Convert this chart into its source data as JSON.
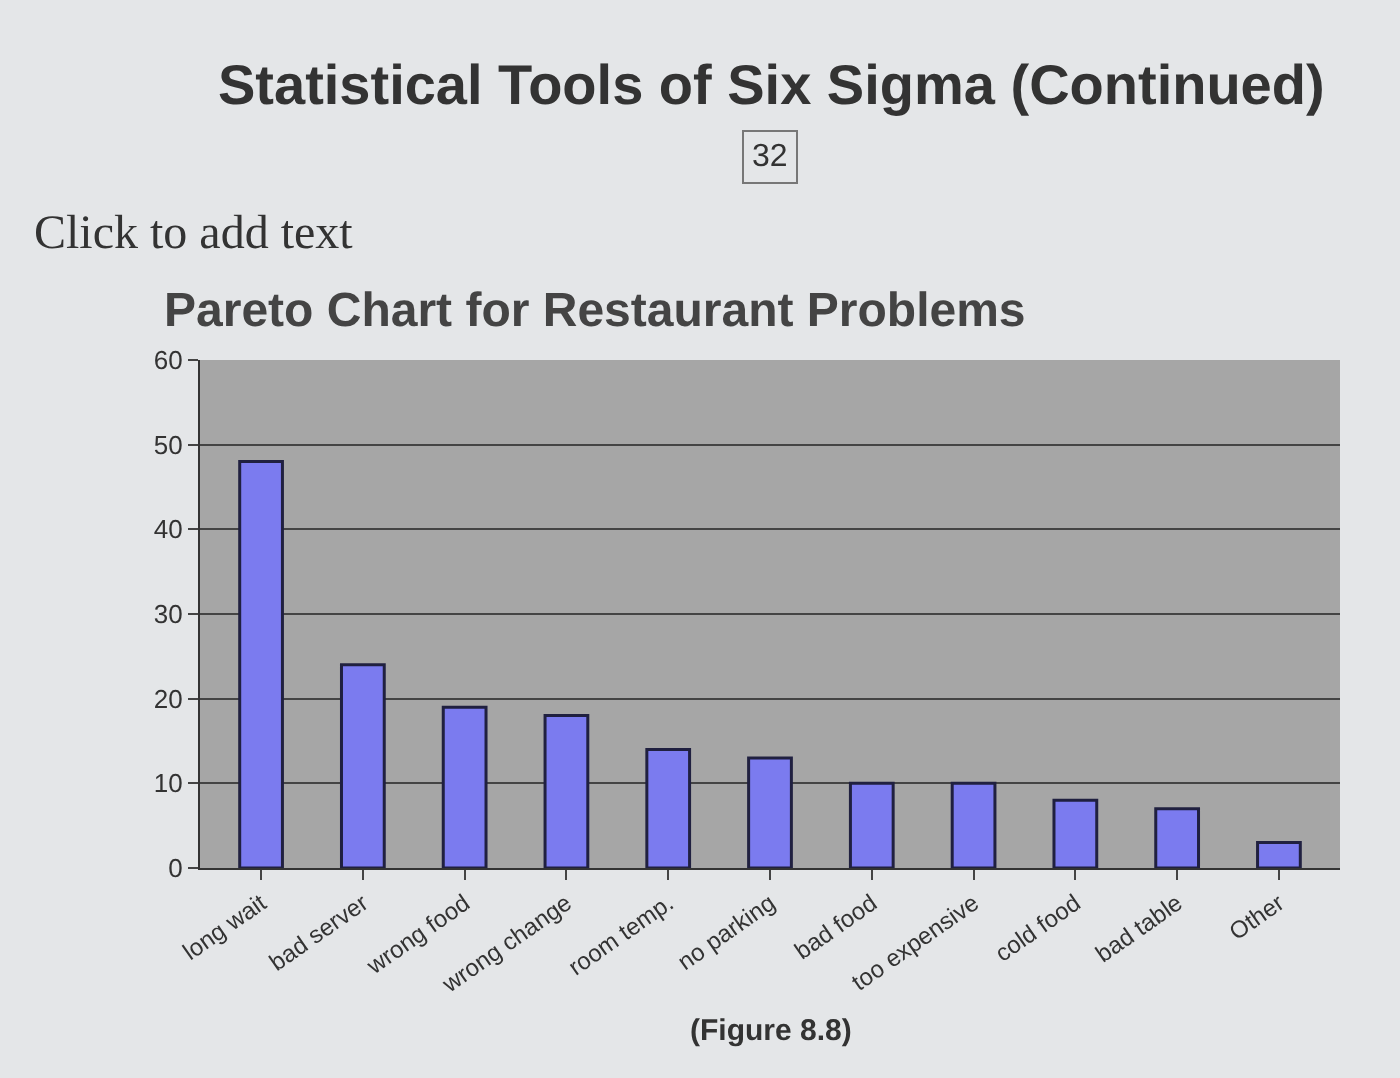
{
  "chart_data": {
    "type": "bar",
    "title": "Statistical Tools of Six Sigma (Continued)",
    "subtitle": "Pareto Chart for Restaurant Problems",
    "annotations": [
      "32",
      "Click to add text",
      "(Figure 8.8)"
    ],
    "categories": [
      "long wait",
      "bad server",
      "wrong food",
      "wrong change",
      "room temp.",
      "no parking",
      "bad food",
      "too expensive",
      "cold food",
      "bad table",
      "Other"
    ],
    "values": [
      48,
      24,
      19,
      18,
      14,
      13,
      10,
      10,
      8,
      7,
      3
    ],
    "color": "#7b7bef",
    "ylim": [
      0,
      60
    ],
    "yticks": [
      0,
      10,
      20,
      30,
      40,
      50,
      60
    ],
    "grid": "y",
    "legend": false
  }
}
